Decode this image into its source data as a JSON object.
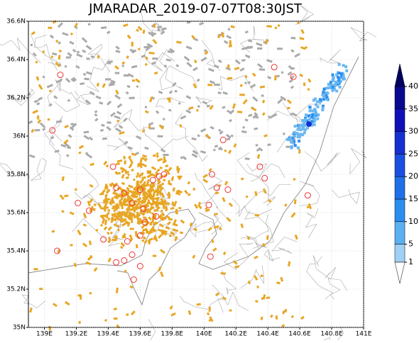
{
  "title": "JMARADAR_2019-07-07T08:30JST",
  "map": {
    "lonlim": [
      138.9,
      141.0
    ],
    "latlim": [
      35.0,
      36.6
    ],
    "lonticks": [
      {
        "value": 139.0,
        "label": "139E"
      },
      {
        "value": 139.2,
        "label": "139.2E"
      },
      {
        "value": 139.4,
        "label": "139.4E"
      },
      {
        "value": 139.6,
        "label": "139.6E"
      },
      {
        "value": 139.8,
        "label": "139.8E"
      },
      {
        "value": 140.0,
        "label": "140E"
      },
      {
        "value": 140.2,
        "label": "140.2E"
      },
      {
        "value": 140.4,
        "label": "140.4E"
      },
      {
        "value": 140.6,
        "label": "140.6E"
      },
      {
        "value": 140.8,
        "label": "140.8E"
      },
      {
        "value": 141.0,
        "label": "141E"
      }
    ],
    "latticks": [
      {
        "value": 35.0,
        "label": "35N"
      },
      {
        "value": 35.2,
        "label": "35.2N"
      },
      {
        "value": 35.4,
        "label": "35.4N"
      },
      {
        "value": 35.6,
        "label": "35.6N"
      },
      {
        "value": 35.8,
        "label": "35.8N"
      },
      {
        "value": 36.0,
        "label": "36N"
      },
      {
        "value": 36.2,
        "label": "36.2N"
      },
      {
        "value": 36.4,
        "label": "36.4N"
      },
      {
        "value": 36.6,
        "label": "36.6N"
      }
    ]
  },
  "colorbar": {
    "ticks": [
      1,
      5,
      10,
      15,
      20,
      25,
      30,
      35,
      40
    ],
    "colors": [
      "#9fd0f5",
      "#5ab0f0",
      "#2a8ef0",
      "#1f6fe8",
      "#1a4fe0",
      "#1530d0",
      "#1010b8",
      "#0a0a90"
    ],
    "over_color": "#000060",
    "under_color": "#ffffff"
  }
}
